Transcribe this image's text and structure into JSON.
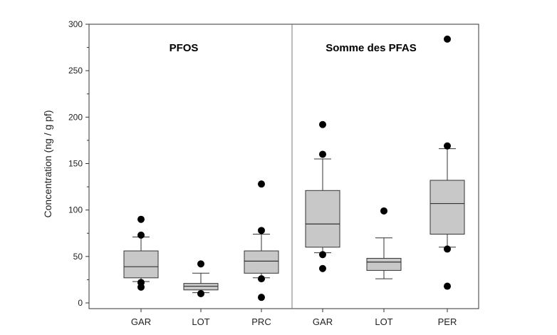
{
  "chart_data": {
    "type": "box",
    "ylabel": "Concentration (ng / g pf)",
    "ylim": [
      0,
      300
    ],
    "yticks": [
      0,
      50,
      100,
      150,
      200,
      250,
      300
    ],
    "grid": false,
    "legend": "none",
    "colors": {
      "box_fill": "#c8c8c8",
      "stroke": "#333333",
      "outlier": "#000000"
    },
    "panels": [
      {
        "title": "PFOS",
        "groups": [
          {
            "category": "GAR",
            "whisker_low": 23,
            "q1": 27,
            "median": 39,
            "q3": 56,
            "whisker_high": 71,
            "outliers": [
              17,
              22,
              73,
              90
            ]
          },
          {
            "category": "LOT",
            "whisker_low": 11,
            "q1": 14,
            "median": 18,
            "q3": 21,
            "whisker_high": 32,
            "outliers": [
              10,
              42
            ]
          },
          {
            "category": "PRC",
            "whisker_low": 27,
            "q1": 32,
            "median": 45,
            "q3": 56,
            "whisker_high": 74,
            "outliers": [
              6,
              26,
              78,
              128
            ]
          }
        ]
      },
      {
        "title": "Somme des PFAS",
        "groups": [
          {
            "category": "GAR",
            "whisker_low": 54,
            "q1": 60,
            "median": 85,
            "q3": 121,
            "whisker_high": 155,
            "outliers": [
              37,
              52,
              160,
              192
            ]
          },
          {
            "category": "LOT",
            "whisker_low": 26,
            "q1": 35,
            "median": 44,
            "q3": 48,
            "whisker_high": 70,
            "outliers": [
              99
            ]
          },
          {
            "category": "PER",
            "whisker_low": 60,
            "q1": 74,
            "median": 107,
            "q3": 132,
            "whisker_high": 166,
            "outliers": [
              18,
              58,
              169,
              284
            ]
          }
        ]
      }
    ]
  }
}
